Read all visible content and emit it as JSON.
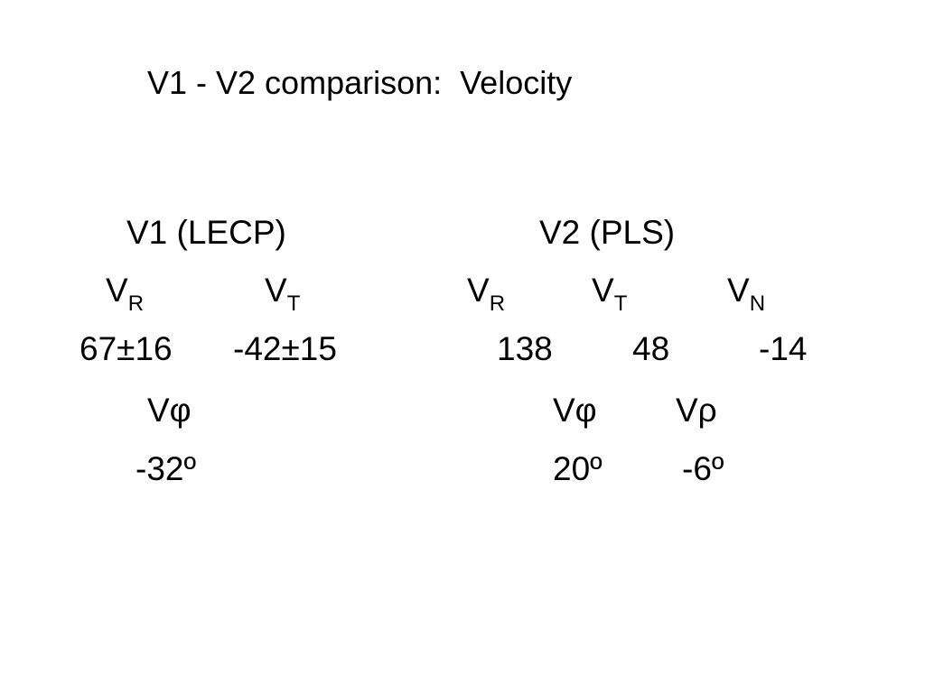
{
  "title": "V1 - V2 comparison:  Velocity",
  "columns": [
    {
      "heading": "V1 (LECP)",
      "components": [
        {
          "symbol": "V",
          "sub": "R"
        },
        {
          "symbol": "V",
          "sub": "T"
        }
      ],
      "values": [
        "67±16",
        "-42±15"
      ],
      "angle_components": [
        "Vφ"
      ],
      "angle_values": [
        "-32º"
      ]
    },
    {
      "heading": "V2 (PLS)",
      "components": [
        {
          "symbol": "V",
          "sub": "R"
        },
        {
          "symbol": "V",
          "sub": "T"
        },
        {
          "symbol": "V",
          "sub": "N"
        }
      ],
      "values": [
        "138",
        "48",
        "-14"
      ],
      "angle_components": [
        "Vφ",
        "Vρ"
      ],
      "angle_values": [
        "20º",
        "-6º"
      ]
    }
  ]
}
